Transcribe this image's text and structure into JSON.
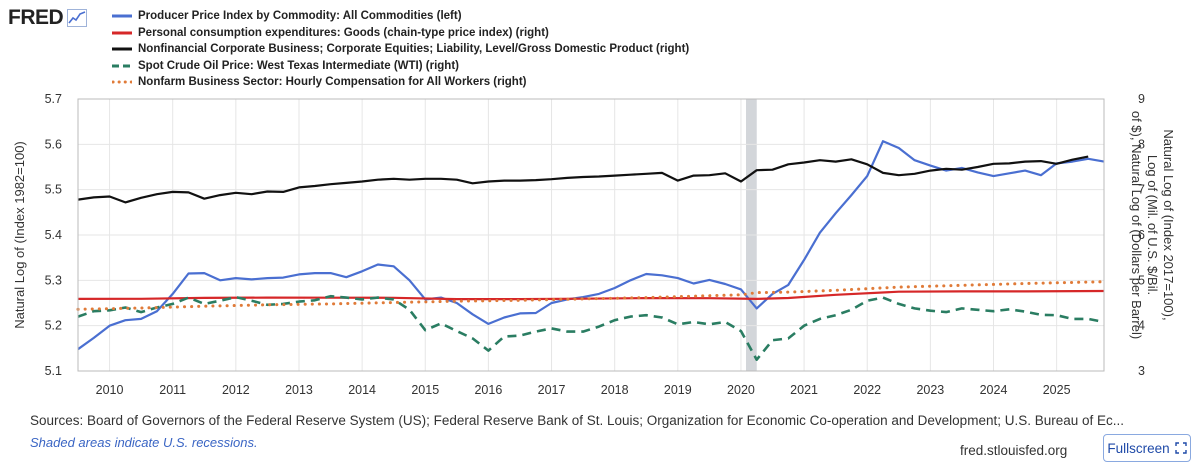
{
  "header": {
    "logo_text": "FRED",
    "logo_icon": "trend-chart-icon"
  },
  "legend": [
    {
      "label": "Producer Price Index by Commodity: All Commodities (left)",
      "color": "#4a6fd1",
      "style": "solid"
    },
    {
      "label": "Personal consumption expenditures: Goods (chain-type price index) (right)",
      "color": "#d62728",
      "style": "solid"
    },
    {
      "label": "Nonfinancial Corporate Business; Corporate Equities; Liability, Level/Gross Domestic Product (right)",
      "color": "#111111",
      "style": "solid"
    },
    {
      "label": "Spot Crude Oil Price: West Texas Intermediate (WTI) (right)",
      "color": "#2a7d62",
      "style": "dashed"
    },
    {
      "label": "Nonfarm Business Sector: Hourly Compensation for All Workers (right)",
      "color": "#e07b39",
      "style": "dotted"
    }
  ],
  "footer": {
    "sources": "Sources: Board of Governors of the Federal Reserve System (US); Federal Reserve Bank of St. Louis; Organization for Economic Co-operation and Development; U.S. Bureau of Ec...",
    "note": "Shaded areas indicate U.S. recessions.",
    "site": "fred.stlouisfed.org",
    "fullscreen_label": "Fullscreen",
    "fullscreen_icon": "expand-icon"
  },
  "chart_data": {
    "type": "line",
    "xlim": [
      2009.5,
      2025.75
    ],
    "x_ticks": [
      "2010",
      "2011",
      "2012",
      "2013",
      "2014",
      "2015",
      "2016",
      "2017",
      "2018",
      "2019",
      "2020",
      "2021",
      "2022",
      "2023",
      "2024",
      "2025"
    ],
    "left_axis": {
      "label": "Natural Log of (Index 1982=100)",
      "ylim": [
        5.1,
        5.7
      ],
      "ticks": [
        "5.1",
        "5.2",
        "5.3",
        "5.4",
        "5.5",
        "5.6",
        "5.7"
      ]
    },
    "right_axis": {
      "label": "Natural Log of (Index 2017=100), Log of (Mil. of U.S. $/Bil. of $), Natural Log of (Dollars per Barrel)",
      "ylim": [
        3,
        9
      ],
      "ticks": [
        "3",
        "4",
        "5",
        "6",
        "7",
        "8",
        "9"
      ]
    },
    "recession": {
      "start": 2020.08,
      "end": 2020.25,
      "color": "#d3d6da"
    },
    "grid": true,
    "series": [
      {
        "name": "Producer Price Index by Commodity: All Commodities (left)",
        "axis": "left",
        "color": "#4a6fd1",
        "style": "solid",
        "points": [
          [
            2009.5,
            5.148
          ],
          [
            2009.75,
            5.173
          ],
          [
            2010.0,
            5.2
          ],
          [
            2010.25,
            5.212
          ],
          [
            2010.5,
            5.215
          ],
          [
            2010.75,
            5.232
          ],
          [
            2011.0,
            5.27
          ],
          [
            2011.25,
            5.315
          ],
          [
            2011.5,
            5.316
          ],
          [
            2011.75,
            5.3
          ],
          [
            2012.0,
            5.305
          ],
          [
            2012.25,
            5.302
          ],
          [
            2012.5,
            5.305
          ],
          [
            2012.75,
            5.306
          ],
          [
            2013.0,
            5.313
          ],
          [
            2013.25,
            5.316
          ],
          [
            2013.5,
            5.316
          ],
          [
            2013.75,
            5.307
          ],
          [
            2014.0,
            5.32
          ],
          [
            2014.25,
            5.335
          ],
          [
            2014.5,
            5.331
          ],
          [
            2014.75,
            5.3
          ],
          [
            2015.0,
            5.258
          ],
          [
            2015.25,
            5.262
          ],
          [
            2015.5,
            5.25
          ],
          [
            2015.75,
            5.225
          ],
          [
            2016.0,
            5.204
          ],
          [
            2016.25,
            5.218
          ],
          [
            2016.5,
            5.227
          ],
          [
            2016.75,
            5.228
          ],
          [
            2017.0,
            5.25
          ],
          [
            2017.25,
            5.258
          ],
          [
            2017.5,
            5.263
          ],
          [
            2017.75,
            5.27
          ],
          [
            2018.0,
            5.283
          ],
          [
            2018.25,
            5.3
          ],
          [
            2018.5,
            5.314
          ],
          [
            2018.75,
            5.311
          ],
          [
            2019.0,
            5.305
          ],
          [
            2019.25,
            5.293
          ],
          [
            2019.5,
            5.301
          ],
          [
            2019.75,
            5.292
          ],
          [
            2020.0,
            5.28
          ],
          [
            2020.25,
            5.238
          ],
          [
            2020.5,
            5.27
          ],
          [
            2020.75,
            5.29
          ],
          [
            2021.0,
            5.345
          ],
          [
            2021.25,
            5.405
          ],
          [
            2021.5,
            5.448
          ],
          [
            2021.75,
            5.488
          ],
          [
            2022.0,
            5.53
          ],
          [
            2022.25,
            5.607
          ],
          [
            2022.5,
            5.592
          ],
          [
            2022.75,
            5.565
          ],
          [
            2023.0,
            5.553
          ],
          [
            2023.25,
            5.542
          ],
          [
            2023.5,
            5.548
          ],
          [
            2023.75,
            5.538
          ],
          [
            2024.0,
            5.53
          ],
          [
            2024.25,
            5.536
          ],
          [
            2024.5,
            5.542
          ],
          [
            2024.75,
            5.532
          ],
          [
            2025.0,
            5.558
          ],
          [
            2025.25,
            5.562
          ],
          [
            2025.5,
            5.568
          ],
          [
            2025.75,
            5.562
          ]
        ]
      },
      {
        "name": "Personal consumption expenditures: Goods (chain-type price index) (right)",
        "axis": "right",
        "color": "#d62728",
        "style": "solid",
        "points": [
          [
            2009.5,
            4.59
          ],
          [
            2010.5,
            4.592
          ],
          [
            2011.5,
            4.612
          ],
          [
            2012.5,
            4.62
          ],
          [
            2013.5,
            4.618
          ],
          [
            2014.5,
            4.615
          ],
          [
            2015.5,
            4.585
          ],
          [
            2016.5,
            4.585
          ],
          [
            2017.5,
            4.595
          ],
          [
            2018.5,
            4.608
          ],
          [
            2019.5,
            4.605
          ],
          [
            2020.25,
            4.59
          ],
          [
            2020.75,
            4.61
          ],
          [
            2021.5,
            4.68
          ],
          [
            2022.5,
            4.75
          ],
          [
            2023.5,
            4.755
          ],
          [
            2024.5,
            4.755
          ],
          [
            2025.75,
            4.765
          ]
        ]
      },
      {
        "name": "Nonfinancial Corporate Business; Corporate Equities; Liability, Level/Gross Domestic Product (right)",
        "axis": "right",
        "color": "#111111",
        "style": "solid",
        "points": [
          [
            2009.5,
            6.78
          ],
          [
            2009.75,
            6.83
          ],
          [
            2010.0,
            6.85
          ],
          [
            2010.25,
            6.72
          ],
          [
            2010.5,
            6.82
          ],
          [
            2010.75,
            6.9
          ],
          [
            2011.0,
            6.95
          ],
          [
            2011.25,
            6.94
          ],
          [
            2011.5,
            6.8
          ],
          [
            2011.75,
            6.88
          ],
          [
            2012.0,
            6.93
          ],
          [
            2012.25,
            6.9
          ],
          [
            2012.5,
            6.96
          ],
          [
            2012.75,
            6.95
          ],
          [
            2013.0,
            7.05
          ],
          [
            2013.25,
            7.08
          ],
          [
            2013.5,
            7.12
          ],
          [
            2013.75,
            7.15
          ],
          [
            2014.0,
            7.18
          ],
          [
            2014.25,
            7.22
          ],
          [
            2014.5,
            7.24
          ],
          [
            2014.75,
            7.22
          ],
          [
            2015.0,
            7.24
          ],
          [
            2015.25,
            7.24
          ],
          [
            2015.5,
            7.22
          ],
          [
            2015.75,
            7.14
          ],
          [
            2016.0,
            7.18
          ],
          [
            2016.25,
            7.2
          ],
          [
            2016.5,
            7.2
          ],
          [
            2016.75,
            7.21
          ],
          [
            2017.0,
            7.23
          ],
          [
            2017.25,
            7.26
          ],
          [
            2017.5,
            7.28
          ],
          [
            2017.75,
            7.29
          ],
          [
            2018.0,
            7.31
          ],
          [
            2018.25,
            7.33
          ],
          [
            2018.5,
            7.35
          ],
          [
            2018.75,
            7.37
          ],
          [
            2019.0,
            7.2
          ],
          [
            2019.25,
            7.31
          ],
          [
            2019.5,
            7.32
          ],
          [
            2019.75,
            7.36
          ],
          [
            2020.0,
            7.18
          ],
          [
            2020.25,
            7.43
          ],
          [
            2020.5,
            7.44
          ],
          [
            2020.75,
            7.56
          ],
          [
            2021.0,
            7.6
          ],
          [
            2021.25,
            7.65
          ],
          [
            2021.5,
            7.62
          ],
          [
            2021.75,
            7.67
          ],
          [
            2022.0,
            7.56
          ],
          [
            2022.25,
            7.37
          ],
          [
            2022.5,
            7.32
          ],
          [
            2022.75,
            7.35
          ],
          [
            2023.0,
            7.42
          ],
          [
            2023.25,
            7.46
          ],
          [
            2023.5,
            7.44
          ],
          [
            2023.75,
            7.5
          ],
          [
            2024.0,
            7.57
          ],
          [
            2024.25,
            7.58
          ],
          [
            2024.5,
            7.62
          ],
          [
            2024.75,
            7.63
          ],
          [
            2025.0,
            7.57
          ],
          [
            2025.25,
            7.66
          ],
          [
            2025.5,
            7.73
          ]
        ]
      },
      {
        "name": "Spot Crude Oil Price: West Texas Intermediate (WTI) (right)",
        "axis": "right",
        "color": "#2a7d62",
        "style": "dashed",
        "points": [
          [
            2009.5,
            4.2
          ],
          [
            2009.75,
            4.32
          ],
          [
            2010.0,
            4.34
          ],
          [
            2010.25,
            4.4
          ],
          [
            2010.5,
            4.3
          ],
          [
            2010.75,
            4.4
          ],
          [
            2011.0,
            4.48
          ],
          [
            2011.25,
            4.62
          ],
          [
            2011.5,
            4.48
          ],
          [
            2011.75,
            4.55
          ],
          [
            2012.0,
            4.63
          ],
          [
            2012.25,
            4.55
          ],
          [
            2012.5,
            4.46
          ],
          [
            2012.75,
            4.48
          ],
          [
            2013.0,
            4.53
          ],
          [
            2013.25,
            4.56
          ],
          [
            2013.5,
            4.65
          ],
          [
            2013.75,
            4.62
          ],
          [
            2014.0,
            4.58
          ],
          [
            2014.25,
            4.62
          ],
          [
            2014.5,
            4.58
          ],
          [
            2014.75,
            4.35
          ],
          [
            2015.0,
            3.9
          ],
          [
            2015.25,
            4.05
          ],
          [
            2015.5,
            3.88
          ],
          [
            2015.75,
            3.72
          ],
          [
            2016.0,
            3.45
          ],
          [
            2016.25,
            3.76
          ],
          [
            2016.5,
            3.78
          ],
          [
            2016.75,
            3.87
          ],
          [
            2017.0,
            3.94
          ],
          [
            2017.25,
            3.87
          ],
          [
            2017.5,
            3.87
          ],
          [
            2017.75,
            3.98
          ],
          [
            2018.0,
            4.12
          ],
          [
            2018.25,
            4.2
          ],
          [
            2018.5,
            4.23
          ],
          [
            2018.75,
            4.18
          ],
          [
            2019.0,
            4.03
          ],
          [
            2019.25,
            4.08
          ],
          [
            2019.5,
            4.03
          ],
          [
            2019.75,
            4.08
          ],
          [
            2020.0,
            3.88
          ],
          [
            2020.25,
            3.25
          ],
          [
            2020.5,
            3.68
          ],
          [
            2020.75,
            3.72
          ],
          [
            2021.0,
            4.0
          ],
          [
            2021.25,
            4.15
          ],
          [
            2021.5,
            4.23
          ],
          [
            2021.75,
            4.35
          ],
          [
            2022.0,
            4.55
          ],
          [
            2022.25,
            4.62
          ],
          [
            2022.5,
            4.48
          ],
          [
            2022.75,
            4.38
          ],
          [
            2023.0,
            4.33
          ],
          [
            2023.25,
            4.3
          ],
          [
            2023.5,
            4.38
          ],
          [
            2023.75,
            4.35
          ],
          [
            2024.0,
            4.32
          ],
          [
            2024.25,
            4.36
          ],
          [
            2024.5,
            4.31
          ],
          [
            2024.75,
            4.24
          ],
          [
            2025.0,
            4.23
          ],
          [
            2025.25,
            4.15
          ],
          [
            2025.5,
            4.15
          ],
          [
            2025.75,
            4.08
          ]
        ]
      },
      {
        "name": "Nonfarm Business Sector: Hourly Compensation for All Workers (right)",
        "axis": "right",
        "color": "#e07b39",
        "style": "dotted",
        "points": [
          [
            2009.5,
            4.36
          ],
          [
            2010.5,
            4.39
          ],
          [
            2011.5,
            4.43
          ],
          [
            2012.5,
            4.46
          ],
          [
            2013.5,
            4.48
          ],
          [
            2014.5,
            4.51
          ],
          [
            2015.5,
            4.54
          ],
          [
            2016.5,
            4.56
          ],
          [
            2017.5,
            4.59
          ],
          [
            2018.5,
            4.62
          ],
          [
            2019.5,
            4.66
          ],
          [
            2020.0,
            4.68
          ],
          [
            2020.25,
            4.73
          ],
          [
            2020.75,
            4.74
          ],
          [
            2021.5,
            4.78
          ],
          [
            2022.5,
            4.85
          ],
          [
            2023.5,
            4.89
          ],
          [
            2024.5,
            4.93
          ],
          [
            2025.75,
            4.97
          ]
        ]
      }
    ]
  }
}
